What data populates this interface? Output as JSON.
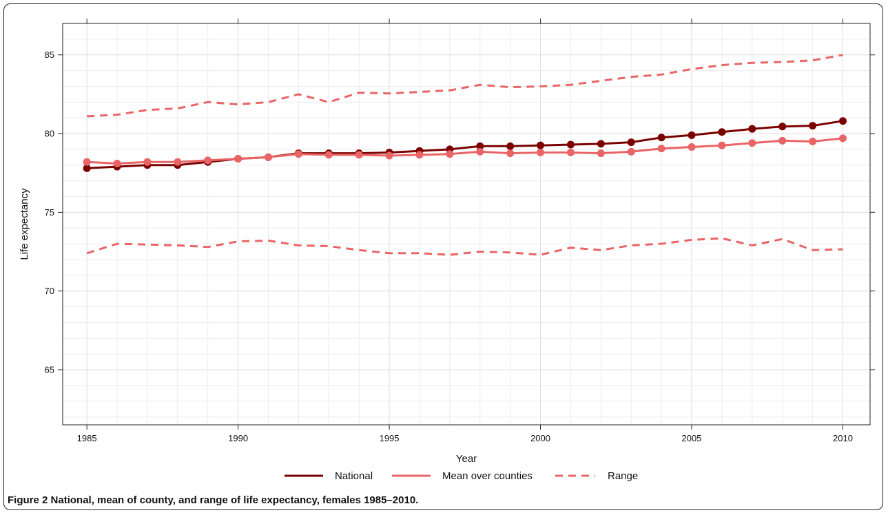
{
  "chart_data": {
    "type": "line",
    "title": "",
    "xlabel": "Year",
    "ylabel": "Life expectancy",
    "xlim": [
      1984.2,
      2010.9
    ],
    "ylim": [
      61.5,
      87
    ],
    "x_ticks": [
      1985,
      1990,
      1995,
      2000,
      2005,
      2010
    ],
    "y_ticks": [
      65,
      70,
      75,
      80,
      85
    ],
    "grid": true,
    "legend_position": "bottom",
    "x": [
      1985,
      1986,
      1987,
      1988,
      1989,
      1990,
      1991,
      1992,
      1993,
      1994,
      1995,
      1996,
      1997,
      1998,
      1999,
      2000,
      2001,
      2002,
      2003,
      2004,
      2005,
      2006,
      2007,
      2008,
      2009,
      2010
    ],
    "series": [
      {
        "name": "National",
        "style": "solid-markers",
        "color": "#7b0000",
        "values": [
          77.8,
          77.9,
          78.0,
          78.0,
          78.2,
          78.4,
          78.5,
          78.75,
          78.75,
          78.75,
          78.8,
          78.9,
          79.0,
          79.2,
          79.2,
          79.25,
          79.3,
          79.35,
          79.45,
          79.75,
          79.9,
          80.1,
          80.3,
          80.45,
          80.5,
          80.8
        ]
      },
      {
        "name": "Mean over counties",
        "style": "solid-markers",
        "color": "#e96466",
        "values": [
          78.2,
          78.1,
          78.2,
          78.2,
          78.3,
          78.4,
          78.5,
          78.7,
          78.65,
          78.65,
          78.6,
          78.65,
          78.7,
          78.85,
          78.75,
          78.8,
          78.8,
          78.75,
          78.85,
          79.05,
          79.15,
          79.25,
          79.4,
          79.55,
          79.5,
          79.7
        ]
      },
      {
        "name": "Range",
        "style": "dashed",
        "color": "#e96466",
        "upper": [
          81.1,
          81.2,
          81.5,
          81.6,
          82.0,
          81.85,
          82.0,
          82.5,
          82.0,
          82.6,
          82.55,
          82.65,
          82.75,
          83.1,
          82.95,
          83.0,
          83.1,
          83.35,
          83.6,
          83.75,
          84.1,
          84.35,
          84.5,
          84.55,
          84.65,
          85.0
        ],
        "lower": [
          72.4,
          73.0,
          72.95,
          72.9,
          72.8,
          73.15,
          73.2,
          72.9,
          72.85,
          72.6,
          72.4,
          72.4,
          72.3,
          72.5,
          72.45,
          72.3,
          72.75,
          72.6,
          72.9,
          73.0,
          73.25,
          73.35,
          72.9,
          73.3,
          72.6,
          72.65
        ]
      }
    ]
  },
  "caption": {
    "label": "Figure 2",
    "text": "National, mean of county, and range of life expectancy, females 1985–2010."
  }
}
